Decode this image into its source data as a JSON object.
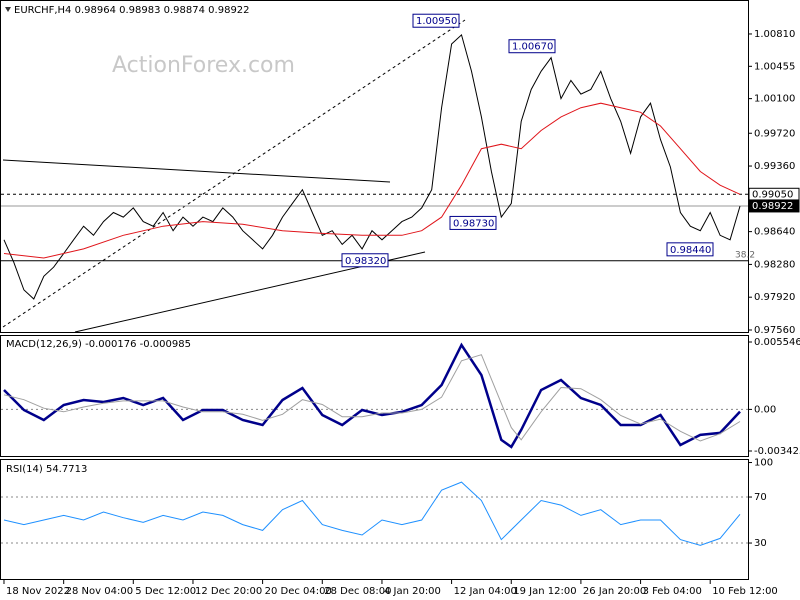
{
  "chart_data": [
    {
      "type": "line",
      "title": "EURCHF,H4 0.98964 0.98983 0.98874 0.98922",
      "watermark": "ActionForex.com",
      "xlim": [
        -0.3,
        74.8
      ],
      "ylim": [
        0.97538,
        1.0115
      ],
      "yticks": [
        {
          "value": 1.0081,
          "label": "1.00810"
        },
        {
          "value": 1.00455,
          "label": "1.00455"
        },
        {
          "value": 1.001,
          "label": "1.00100"
        },
        {
          "value": 0.9972,
          "label": "0.99720"
        },
        {
          "value": 0.9936,
          "label": "0.99360"
        },
        {
          "value": 0.9864,
          "label": "0.98640"
        },
        {
          "value": 0.9828,
          "label": "0.98280"
        },
        {
          "value": 0.9792,
          "label": "0.97920"
        },
        {
          "value": 0.9756,
          "label": "0.97560"
        }
      ],
      "price_labels": [
        {
          "value": 0.9905,
          "label": "0.99050"
        },
        {
          "value": 0.98922,
          "label": "0.98922"
        }
      ],
      "annotations": [
        {
          "value": 1.0095,
          "label": "1.00950"
        },
        {
          "value": 1.0067,
          "label": "1.00670"
        },
        {
          "value": 0.9873,
          "label": "0.98730"
        },
        {
          "value": 0.9832,
          "label": "0.98320"
        },
        {
          "value": 0.9844,
          "label": "0.98440"
        }
      ],
      "fib_label": "38.2",
      "series": [
        {
          "color": "#000000",
          "x": [
            0,
            1,
            2,
            3,
            4,
            5,
            6,
            7,
            8,
            9,
            10,
            11,
            12,
            13,
            14,
            15,
            16,
            17,
            18,
            19,
            20,
            21,
            22,
            23,
            24,
            25,
            26,
            27,
            28,
            29,
            30,
            31,
            32,
            33,
            34,
            35,
            36,
            37,
            38,
            39,
            40,
            41,
            42,
            43,
            44,
            45,
            46,
            47,
            48,
            49,
            50,
            51,
            52,
            53,
            54,
            55,
            56,
            57,
            58,
            59,
            60,
            61,
            62,
            63,
            64,
            65,
            66,
            67,
            68,
            69,
            70,
            71,
            72,
            73,
            74
          ],
          "values": [
            0.9855,
            0.983,
            0.98,
            0.979,
            0.9815,
            0.9825,
            0.984,
            0.9855,
            0.987,
            0.986,
            0.9875,
            0.9885,
            0.988,
            0.989,
            0.9875,
            0.987,
            0.9885,
            0.9865,
            0.988,
            0.987,
            0.988,
            0.9875,
            0.989,
            0.988,
            0.9865,
            0.9855,
            0.9845,
            0.986,
            0.988,
            0.9895,
            0.991,
            0.9885,
            0.986,
            0.9865,
            0.985,
            0.986,
            0.9845,
            0.9865,
            0.9855,
            0.9865,
            0.9875,
            0.988,
            0.989,
            0.991,
            1.0,
            1.007,
            1.008,
            1.004,
            0.999,
            0.993,
            0.988,
            0.9895,
            0.9985,
            1.002,
            1.004,
            1.0055,
            1.001,
            1.003,
            1.0015,
            1.002,
            1.004,
            1.001,
            0.9985,
            0.995,
            0.999,
            1.0005,
            0.9965,
            0.9935,
            0.9885,
            0.987,
            0.9865,
            0.9885,
            0.986,
            0.9855,
            0.9892
          ]
        },
        {
          "color": "#e0151b",
          "x": [
            0,
            4,
            8,
            12,
            16,
            20,
            24,
            28,
            32,
            36,
            40,
            42,
            44,
            46,
            48,
            50,
            52,
            54,
            56,
            58,
            60,
            62,
            64,
            66,
            68,
            70,
            72,
            74
          ],
          "values": [
            0.984,
            0.9835,
            0.9845,
            0.986,
            0.987,
            0.9875,
            0.9872,
            0.9865,
            0.9862,
            0.986,
            0.986,
            0.9865,
            0.988,
            0.9915,
            0.9955,
            0.996,
            0.9955,
            0.9975,
            0.999,
            1.0,
            1.0005,
            1.0,
            0.9995,
            0.998,
            0.9955,
            0.993,
            0.9915,
            0.9905
          ]
        }
      ]
    },
    {
      "type": "line",
      "title": "MACD(12,26,9) -0.000176 -0.000985",
      "xlim": [
        -0.3,
        74.8
      ],
      "ylim": [
        -0.003835,
        0.00604
      ],
      "yticks": [
        0.005546,
        {
          "value": 0,
          "label": "0.00"
        },
        -0.003423
      ],
      "levels": [
        0
      ],
      "series": [
        {
          "color": "#00008b",
          "x": [
            0,
            2,
            4,
            6,
            8,
            10,
            12,
            14,
            16,
            18,
            20,
            22,
            24,
            26,
            28,
            30,
            32,
            34,
            36,
            38,
            40,
            42,
            44,
            46,
            48,
            50,
            51,
            52,
            54,
            56,
            58,
            60,
            62,
            64,
            66,
            68,
            70,
            72,
            74
          ],
          "values": [
            0.0016,
            -5e-05,
            -0.00087,
            0.00036,
            0.00077,
            0.00061,
            0.00094,
            0.00036,
            0.00094,
            -0.00087,
            -5e-05,
            -5e-05,
            -0.00087,
            -0.00128,
            0.00077,
            0.00176,
            -0.00046,
            -0.00128,
            -5e-05,
            -0.00046,
            -0.00021,
            0.00036,
            0.00201,
            0.0053,
            0.00283,
            -0.00251,
            -0.00309,
            -0.00169,
            0.0016,
            0.00242,
            0.00094,
            0.00036,
            -0.00128,
            -0.00128,
            -0.00046,
            -0.00293,
            -0.0021,
            -0.00193,
            -0.00018
          ]
        },
        {
          "color": "#a0a0a0",
          "x": [
            0,
            2,
            4,
            6,
            8,
            10,
            12,
            14,
            16,
            18,
            20,
            22,
            24,
            26,
            28,
            30,
            32,
            34,
            36,
            38,
            40,
            42,
            44,
            46,
            48,
            50,
            51,
            52,
            54,
            56,
            58,
            60,
            62,
            64,
            66,
            68,
            70,
            72,
            74
          ],
          "values": [
            0.0012,
            0.0008,
            0.0001,
            -0.0002,
            0.0002,
            0.0005,
            0.0007,
            0.0007,
            0.0007,
            0.0002,
            -0.0002,
            -0.0002,
            -0.0004,
            -0.0009,
            -0.0004,
            0.0008,
            0.0004,
            -0.0006,
            -0.0006,
            -0.0003,
            -0.0003,
            0.0,
            0.001,
            0.004,
            0.0045,
            0.0005,
            -0.0015,
            -0.0025,
            -0.0002,
            0.0018,
            0.0017,
            0.0008,
            -0.0005,
            -0.0012,
            -0.0008,
            -0.0018,
            -0.0026,
            -0.002,
            -0.001
          ]
        }
      ]
    },
    {
      "type": "line",
      "title": "RSI(14) 54.7713",
      "xlim": [
        -0.3,
        74.8
      ],
      "ylim": [
        -0.4,
        102.2
      ],
      "yticks": [
        100,
        70,
        30
      ],
      "levels": [
        70,
        30
      ],
      "xticks": [
        {
          "value": 0,
          "label": "18 Nov 2022"
        },
        {
          "value": 6,
          "label": "28 Nov 04:00"
        },
        {
          "value": 13,
          "label": "5 Dec 12:00"
        },
        {
          "value": 19,
          "label": "12 Dec 20:00"
        },
        {
          "value": 26,
          "label": "20 Dec 04:00"
        },
        {
          "value": 32,
          "label": "28 Dec 08:00"
        },
        {
          "value": 38,
          "label": "4 Jan 20:00"
        },
        {
          "value": 45,
          "label": "12 Jan 04:00"
        },
        {
          "value": 51,
          "label": "19 Jan 12:00"
        },
        {
          "value": 58,
          "label": "26 Jan 20:00"
        },
        {
          "value": 64,
          "label": "3 Feb 04:00"
        },
        {
          "value": 71,
          "label": "10 Feb 12:00"
        }
      ],
      "series": [
        {
          "color": "#1e90ff",
          "x": [
            0,
            2,
            4,
            6,
            8,
            10,
            12,
            14,
            16,
            18,
            20,
            22,
            24,
            26,
            28,
            30,
            32,
            34,
            36,
            38,
            40,
            42,
            44,
            46,
            48,
            50,
            52,
            54,
            56,
            58,
            60,
            62,
            64,
            66,
            68,
            70,
            72,
            74
          ],
          "values": [
            50,
            46,
            50,
            54,
            50,
            57,
            52,
            48,
            54,
            50,
            57,
            54,
            46,
            41,
            59,
            67,
            46,
            41,
            37,
            50,
            46,
            50,
            76,
            83,
            67,
            33,
            50,
            67,
            63,
            54,
            59,
            46,
            50,
            50,
            33,
            28,
            34,
            55
          ]
        }
      ]
    }
  ]
}
